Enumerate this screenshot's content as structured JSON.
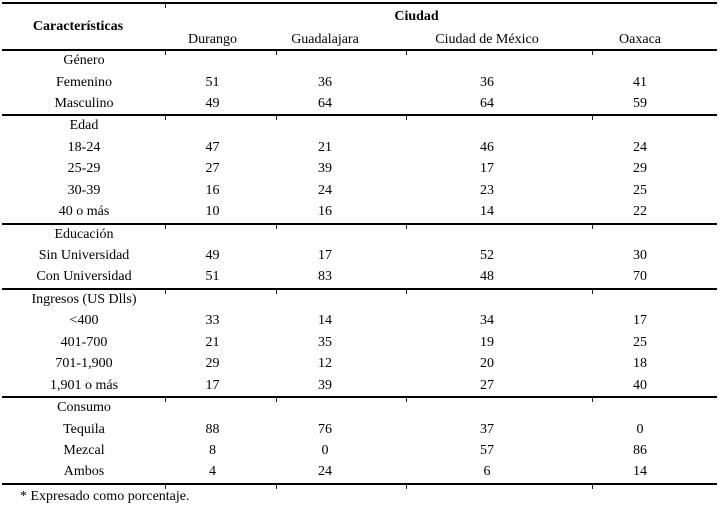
{
  "table": {
    "header": {
      "characteristics_label": "Características",
      "group_label": "Ciudad",
      "columns": [
        "Durango",
        "Guadalajara",
        "Ciudad de México",
        "Oaxaca"
      ]
    },
    "sections": [
      {
        "label": "Género",
        "rows": [
          {
            "label": "Femenino",
            "values": [
              51,
              36,
              36,
              41
            ]
          },
          {
            "label": "Masculino",
            "values": [
              49,
              64,
              64,
              59
            ]
          }
        ]
      },
      {
        "label": "Edad",
        "rows": [
          {
            "label": "18-24",
            "values": [
              47,
              21,
              46,
              24
            ]
          },
          {
            "label": "25-29",
            "values": [
              27,
              39,
              17,
              29
            ]
          },
          {
            "label": "30-39",
            "values": [
              16,
              24,
              23,
              25
            ]
          },
          {
            "label": "40 o más",
            "values": [
              10,
              16,
              14,
              22
            ]
          }
        ]
      },
      {
        "label": "Educación",
        "rows": [
          {
            "label": "Sin Universidad",
            "values": [
              49,
              17,
              52,
              30
            ]
          },
          {
            "label": "Con Universidad",
            "values": [
              51,
              83,
              48,
              70
            ]
          }
        ]
      },
      {
        "label": "Ingresos (US Dlls)",
        "rows": [
          {
            "label": "<400",
            "values": [
              33,
              14,
              34,
              17
            ]
          },
          {
            "label": "401-700",
            "values": [
              21,
              35,
              19,
              25
            ]
          },
          {
            "label": "701-1,900",
            "values": [
              29,
              12,
              20,
              18
            ]
          },
          {
            "label": "1,901 o más",
            "values": [
              17,
              39,
              27,
              40
            ]
          }
        ]
      },
      {
        "label": "Consumo",
        "rows": [
          {
            "label": "Tequila",
            "values": [
              88,
              76,
              37,
              0
            ]
          },
          {
            "label": "Mezcal",
            "values": [
              8,
              0,
              57,
              86
            ]
          },
          {
            "label": "Ambos",
            "values": [
              4,
              24,
              6,
              14
            ]
          }
        ]
      }
    ],
    "footnote": "* Expresado como porcentaje."
  }
}
